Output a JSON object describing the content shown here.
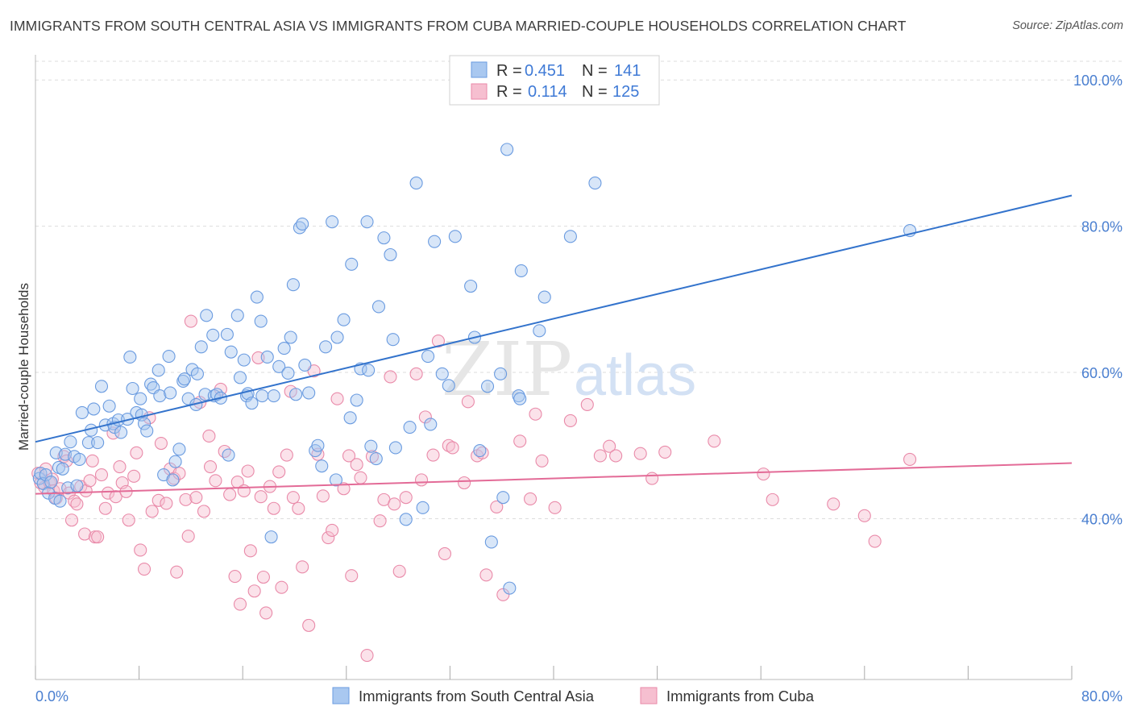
{
  "title": "IMMIGRANTS FROM SOUTH CENTRAL ASIA VS IMMIGRANTS FROM CUBA MARRIED-COUPLE HOUSEHOLDS CORRELATION CHART",
  "source": "Source: ZipAtlas.com",
  "watermark": {
    "zip": "ZIP",
    "atlas": "atlas"
  },
  "legend": {
    "r_label": "R =",
    "n_label": "N =",
    "series": [
      {
        "r": "0.451",
        "n": "141"
      },
      {
        "r": "0.114",
        "n": "125"
      }
    ]
  },
  "colors": {
    "blue_fill": "#a9c8f0",
    "blue_stroke": "#6a9be0",
    "blue_line": "#3373cc",
    "pink_fill": "#f6bfd0",
    "pink_stroke": "#e98aa9",
    "pink_line": "#e36b97",
    "axis_text": "#4a7fd0",
    "grid": "#dddddd"
  },
  "chart_data": {
    "type": "scatter",
    "title": "IMMIGRANTS FROM SOUTH CENTRAL ASIA VS IMMIGRANTS FROM CUBA MARRIED-COUPLE HOUSEHOLDS CORRELATION CHART",
    "ylabel": "Married-couple Households",
    "xlabel": "",
    "xlim": [
      0,
      80
    ],
    "ylim": [
      18,
      103
    ],
    "x_tick_labels": [
      "0.0%",
      "80.0%"
    ],
    "y_ticks": [
      40,
      60,
      80,
      100
    ],
    "y_tick_labels": [
      "40.0%",
      "60.0%",
      "80.0%",
      "100.0%"
    ],
    "grid": true,
    "legend_position": "top-center",
    "series": [
      {
        "name": "Immigrants from South Central Asia",
        "color": "#6a9be0",
        "trend": {
          "x": [
            0,
            80
          ],
          "y": [
            50.5,
            84.2
          ]
        },
        "points": [
          [
            0.3,
            45.5
          ],
          [
            0.4,
            46.2
          ],
          [
            0.6,
            44.8
          ],
          [
            0.8,
            46.0
          ],
          [
            1.0,
            43.5
          ],
          [
            1.2,
            45.0
          ],
          [
            1.5,
            42.8
          ],
          [
            1.6,
            49.0
          ],
          [
            1.8,
            47.0
          ],
          [
            1.9,
            42.4
          ],
          [
            2.1,
            46.8
          ],
          [
            2.3,
            48.8
          ],
          [
            2.5,
            44.2
          ],
          [
            2.7,
            50.5
          ],
          [
            3.0,
            48.5
          ],
          [
            3.2,
            44.5
          ],
          [
            3.4,
            48.1
          ],
          [
            3.6,
            54.5
          ],
          [
            4.1,
            50.4
          ],
          [
            4.3,
            52.1
          ],
          [
            4.5,
            55.0
          ],
          [
            4.8,
            50.4
          ],
          [
            5.1,
            58.1
          ],
          [
            5.4,
            52.8
          ],
          [
            5.7,
            55.4
          ],
          [
            6.0,
            53.0
          ],
          [
            6.1,
            52.5
          ],
          [
            6.4,
            53.5
          ],
          [
            6.6,
            51.8
          ],
          [
            7.1,
            53.6
          ],
          [
            7.3,
            62.1
          ],
          [
            7.5,
            57.8
          ],
          [
            7.8,
            54.5
          ],
          [
            8.1,
            56.4
          ],
          [
            8.2,
            54.2
          ],
          [
            8.4,
            53.0
          ],
          [
            8.6,
            52.0
          ],
          [
            8.9,
            58.4
          ],
          [
            9.1,
            57.9
          ],
          [
            9.5,
            60.3
          ],
          [
            9.6,
            56.8
          ],
          [
            9.9,
            46.0
          ],
          [
            10.3,
            62.2
          ],
          [
            10.4,
            57.2
          ],
          [
            10.6,
            45.3
          ],
          [
            10.8,
            47.8
          ],
          [
            11.1,
            49.5
          ],
          [
            11.4,
            58.8
          ],
          [
            11.5,
            59.1
          ],
          [
            11.8,
            56.4
          ],
          [
            12.1,
            60.4
          ],
          [
            12.4,
            55.6
          ],
          [
            12.5,
            59.8
          ],
          [
            12.8,
            63.5
          ],
          [
            13.1,
            57.0
          ],
          [
            13.2,
            67.8
          ],
          [
            13.7,
            65.1
          ],
          [
            13.8,
            56.8
          ],
          [
            14.0,
            57.0
          ],
          [
            14.3,
            56.5
          ],
          [
            14.8,
            65.2
          ],
          [
            14.9,
            48.7
          ],
          [
            15.1,
            62.8
          ],
          [
            15.6,
            67.8
          ],
          [
            15.8,
            59.3
          ],
          [
            16.1,
            61.7
          ],
          [
            16.3,
            56.8
          ],
          [
            16.4,
            57.1
          ],
          [
            16.7,
            55.8
          ],
          [
            17.1,
            70.3
          ],
          [
            17.4,
            67.0
          ],
          [
            17.5,
            56.8
          ],
          [
            17.9,
            62.1
          ],
          [
            18.2,
            37.5
          ],
          [
            18.4,
            56.8
          ],
          [
            18.8,
            60.8
          ],
          [
            19.2,
            63.3
          ],
          [
            19.5,
            59.9
          ],
          [
            19.7,
            64.8
          ],
          [
            19.9,
            72.0
          ],
          [
            20.1,
            57.0
          ],
          [
            20.4,
            79.8
          ],
          [
            20.6,
            80.3
          ],
          [
            20.8,
            61.0
          ],
          [
            21.1,
            57.2
          ],
          [
            21.6,
            49.3
          ],
          [
            21.8,
            50.0
          ],
          [
            22.1,
            47.2
          ],
          [
            22.4,
            63.5
          ],
          [
            22.9,
            80.6
          ],
          [
            23.2,
            45.3
          ],
          [
            23.3,
            64.8
          ],
          [
            23.8,
            67.2
          ],
          [
            24.3,
            53.8
          ],
          [
            24.4,
            74.8
          ],
          [
            24.8,
            56.2
          ],
          [
            25.1,
            60.5
          ],
          [
            25.6,
            80.6
          ],
          [
            25.7,
            60.3
          ],
          [
            25.9,
            49.9
          ],
          [
            26.3,
            48.2
          ],
          [
            26.5,
            69.0
          ],
          [
            26.9,
            78.4
          ],
          [
            27.4,
            76.1
          ],
          [
            27.6,
            64.5
          ],
          [
            27.8,
            49.7
          ],
          [
            28.6,
            39.9
          ],
          [
            28.9,
            52.5
          ],
          [
            29.4,
            85.9
          ],
          [
            29.9,
            41.5
          ],
          [
            30.3,
            62.2
          ],
          [
            30.5,
            52.9
          ],
          [
            30.8,
            77.9
          ],
          [
            31.4,
            59.8
          ],
          [
            31.9,
            58.2
          ],
          [
            32.4,
            78.6
          ],
          [
            33.6,
            71.8
          ],
          [
            33.9,
            64.8
          ],
          [
            34.3,
            49.3
          ],
          [
            34.9,
            58.1
          ],
          [
            35.2,
            36.8
          ],
          [
            35.9,
            59.8
          ],
          [
            36.1,
            42.9
          ],
          [
            36.4,
            90.5
          ],
          [
            36.6,
            30.5
          ],
          [
            37.3,
            56.8
          ],
          [
            37.4,
            56.4
          ],
          [
            37.5,
            73.9
          ],
          [
            38.9,
            65.7
          ],
          [
            39.3,
            70.3
          ],
          [
            41.3,
            78.6
          ],
          [
            43.2,
            85.9
          ],
          [
            67.5,
            79.4
          ]
        ]
      },
      {
        "name": "Immigrants from Cuba",
        "color": "#e98aa9",
        "trend": {
          "x": [
            0,
            80
          ],
          "y": [
            43.4,
            47.6
          ]
        },
        "points": [
          [
            0.2,
            46.2
          ],
          [
            0.4,
            44.9
          ],
          [
            0.7,
            44.3
          ],
          [
            0.8,
            46.8
          ],
          [
            1.1,
            44.9
          ],
          [
            1.3,
            45.4
          ],
          [
            1.4,
            43.8
          ],
          [
            1.6,
            42.8
          ],
          [
            1.9,
            44.1
          ],
          [
            2.2,
            48.5
          ],
          [
            2.4,
            47.9
          ],
          [
            2.6,
            43.5
          ],
          [
            2.8,
            39.8
          ],
          [
            3.0,
            42.4
          ],
          [
            3.2,
            42.0
          ],
          [
            3.5,
            44.4
          ],
          [
            3.8,
            37.9
          ],
          [
            3.9,
            43.8
          ],
          [
            4.2,
            45.2
          ],
          [
            4.4,
            47.9
          ],
          [
            4.6,
            37.5
          ],
          [
            4.8,
            37.5
          ],
          [
            5.1,
            46.0
          ],
          [
            5.4,
            41.4
          ],
          [
            5.6,
            43.5
          ],
          [
            6.0,
            51.7
          ],
          [
            6.2,
            43.0
          ],
          [
            6.5,
            47.1
          ],
          [
            6.7,
            44.9
          ],
          [
            7.0,
            43.7
          ],
          [
            7.2,
            39.8
          ],
          [
            7.6,
            45.8
          ],
          [
            7.8,
            49.0
          ],
          [
            8.1,
            35.7
          ],
          [
            8.4,
            33.1
          ],
          [
            8.8,
            53.8
          ],
          [
            9.0,
            41.0
          ],
          [
            9.5,
            42.5
          ],
          [
            9.7,
            50.3
          ],
          [
            10.1,
            42.1
          ],
          [
            10.4,
            46.8
          ],
          [
            10.7,
            45.5
          ],
          [
            10.9,
            32.7
          ],
          [
            11.1,
            46.2
          ],
          [
            11.6,
            42.6
          ],
          [
            11.8,
            37.6
          ],
          [
            12.0,
            67.0
          ],
          [
            12.4,
            42.9
          ],
          [
            12.7,
            55.9
          ],
          [
            13.0,
            41.0
          ],
          [
            13.4,
            51.3
          ],
          [
            13.5,
            47.1
          ],
          [
            13.9,
            45.2
          ],
          [
            14.3,
            57.7
          ],
          [
            14.6,
            49.2
          ],
          [
            15.0,
            43.3
          ],
          [
            15.4,
            32.1
          ],
          [
            15.6,
            45.0
          ],
          [
            15.8,
            28.3
          ],
          [
            16.1,
            43.8
          ],
          [
            16.4,
            46.5
          ],
          [
            16.6,
            35.6
          ],
          [
            16.9,
            30.1
          ],
          [
            17.2,
            62.0
          ],
          [
            17.4,
            43.0
          ],
          [
            17.6,
            32.0
          ],
          [
            17.8,
            27.1
          ],
          [
            18.1,
            44.4
          ],
          [
            18.4,
            41.4
          ],
          [
            18.8,
            46.4
          ],
          [
            19.0,
            30.6
          ],
          [
            19.4,
            48.7
          ],
          [
            19.7,
            57.4
          ],
          [
            19.9,
            42.9
          ],
          [
            20.3,
            41.4
          ],
          [
            20.6,
            33.4
          ],
          [
            21.1,
            25.4
          ],
          [
            21.5,
            60.2
          ],
          [
            21.8,
            48.8
          ],
          [
            22.2,
            43.1
          ],
          [
            22.6,
            37.4
          ],
          [
            22.9,
            38.4
          ],
          [
            23.3,
            56.4
          ],
          [
            23.8,
            44.1
          ],
          [
            24.2,
            48.6
          ],
          [
            24.4,
            32.2
          ],
          [
            24.8,
            47.4
          ],
          [
            25.1,
            45.6
          ],
          [
            25.6,
            21.3
          ],
          [
            26.0,
            48.5
          ],
          [
            26.6,
            39.7
          ],
          [
            26.9,
            42.6
          ],
          [
            27.4,
            59.4
          ],
          [
            27.7,
            42.0
          ],
          [
            28.1,
            32.8
          ],
          [
            28.6,
            42.9
          ],
          [
            29.4,
            59.8
          ],
          [
            29.8,
            45.3
          ],
          [
            30.1,
            53.9
          ],
          [
            30.7,
            48.7
          ],
          [
            31.1,
            64.3
          ],
          [
            31.6,
            35.2
          ],
          [
            31.9,
            50.0
          ],
          [
            32.2,
            49.7
          ],
          [
            33.1,
            44.9
          ],
          [
            33.4,
            56.0
          ],
          [
            34.1,
            48.6
          ],
          [
            34.5,
            49.0
          ],
          [
            34.8,
            32.3
          ],
          [
            35.6,
            41.6
          ],
          [
            36.1,
            29.6
          ],
          [
            37.4,
            50.6
          ],
          [
            38.2,
            42.7
          ],
          [
            38.6,
            54.3
          ],
          [
            39.1,
            47.9
          ],
          [
            40.1,
            41.5
          ],
          [
            41.3,
            53.4
          ],
          [
            42.6,
            55.6
          ],
          [
            43.6,
            48.6
          ],
          [
            44.3,
            49.9
          ],
          [
            44.8,
            48.6
          ],
          [
            46.7,
            48.9
          ],
          [
            47.6,
            45.5
          ],
          [
            48.6,
            49.1
          ],
          [
            52.4,
            50.6
          ],
          [
            56.2,
            46.1
          ],
          [
            56.9,
            42.6
          ],
          [
            61.6,
            42.0
          ],
          [
            64.0,
            40.4
          ],
          [
            64.8,
            36.9
          ],
          [
            67.5,
            48.1
          ]
        ]
      }
    ]
  }
}
